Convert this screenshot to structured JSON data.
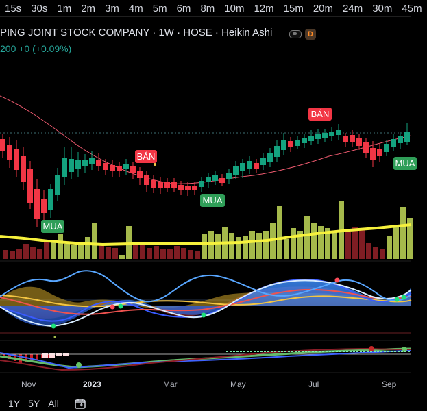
{
  "intervals": [
    "15s",
    "30s",
    "1m",
    "2m",
    "3m",
    "4m",
    "5m",
    "6m",
    "8m",
    "10m",
    "12m",
    "15m",
    "20m",
    "24m",
    "30m",
    "45m"
  ],
  "header": {
    "title": "PING JOINT STOCK COMPANY · 1W · HOSE · Heikin Ashi",
    "price_line": "200 +0 (+0.09%)",
    "status_badge": "D",
    "status_badge_color": "#ff8b25"
  },
  "signals": {
    "sell_label": "BÁN",
    "buy_label": "MUA",
    "sell_color": "#f23645",
    "buy_color": "#2f9e58"
  },
  "time_axis": {
    "labels": [
      "Nov",
      "2023",
      "Mar",
      "May",
      "Jul",
      "Sep"
    ]
  },
  "ranges": [
    "1Y",
    "5Y",
    "All"
  ],
  "icons": {
    "calendar": "calendar-icon",
    "pill": "pill-toggle-icon"
  }
}
